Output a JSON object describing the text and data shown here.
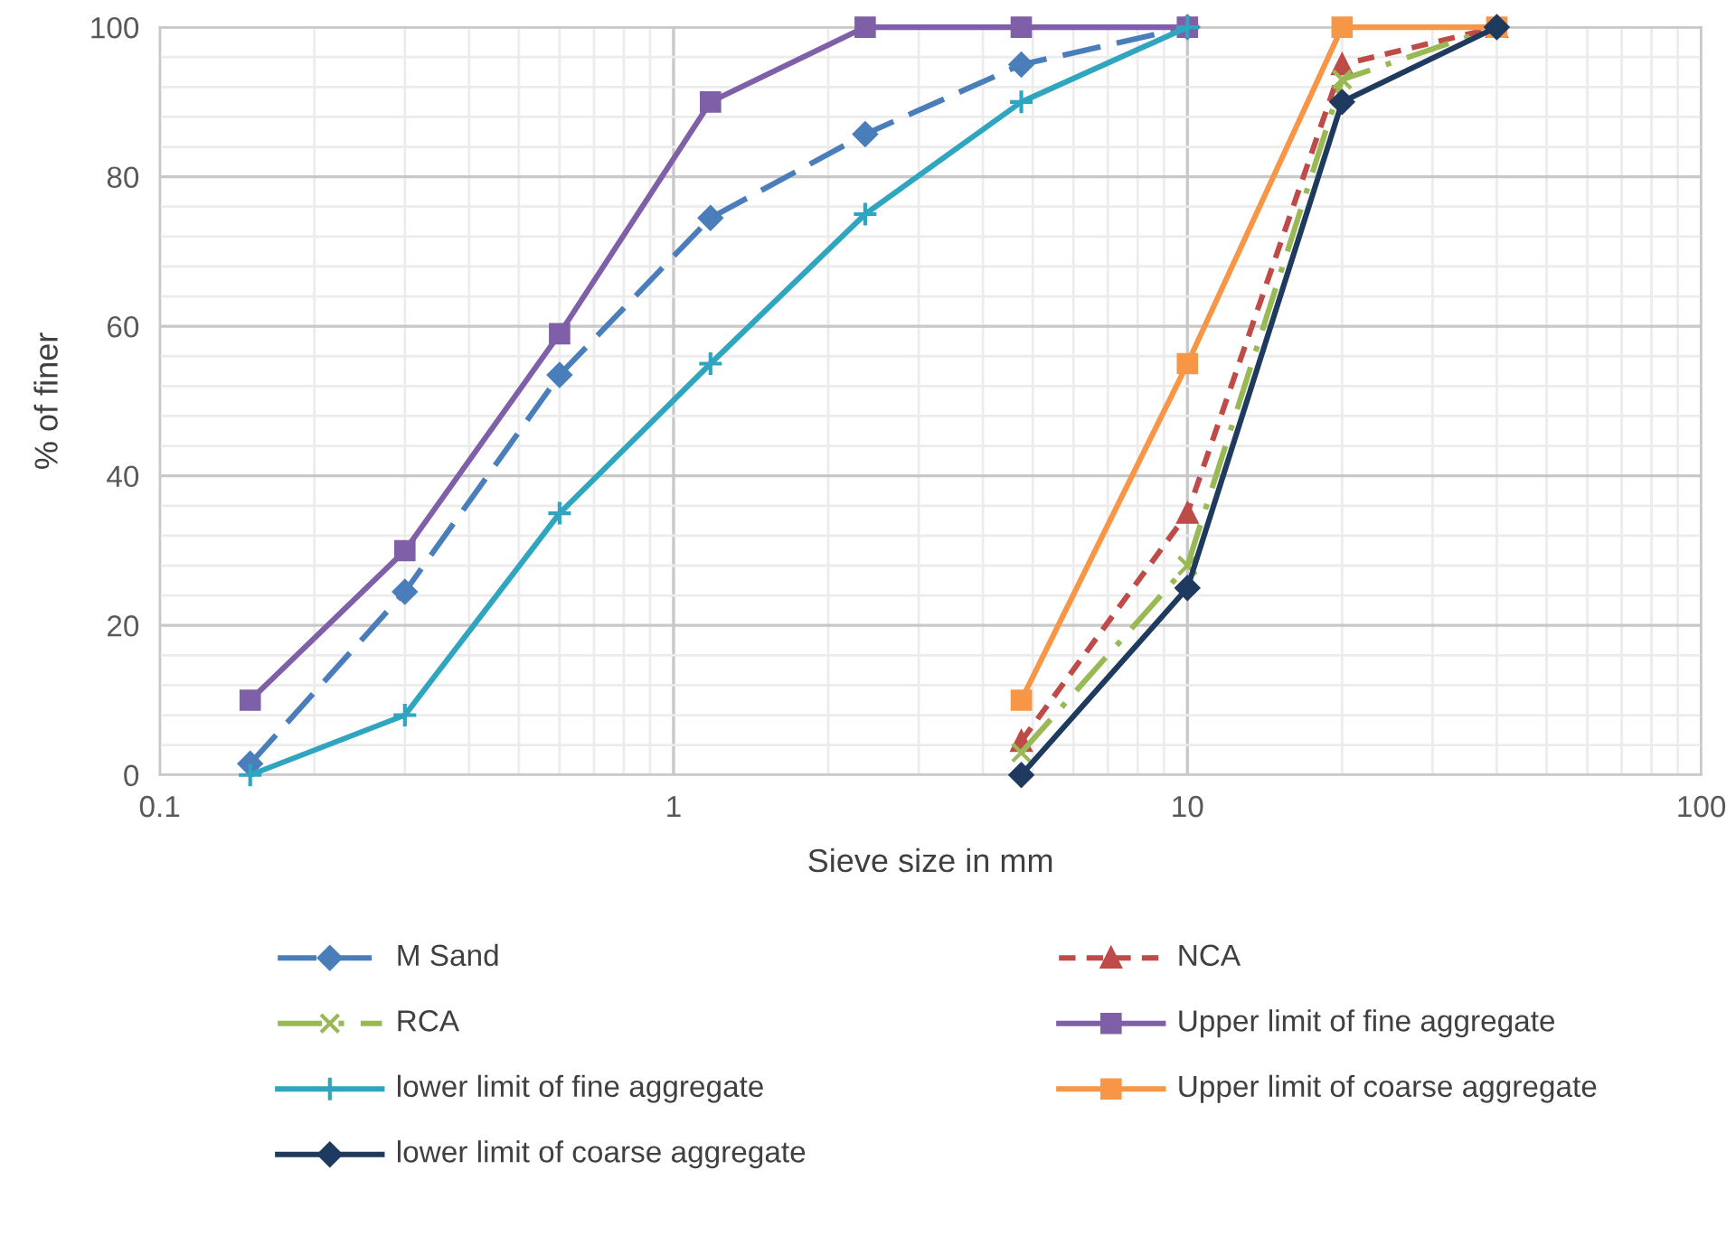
{
  "chart_data": {
    "type": "line",
    "xlabel": "Sieve size in mm",
    "ylabel": "% of finer",
    "log": "x",
    "xlim": [
      0.1,
      100
    ],
    "xticks": [
      0.1,
      1,
      10,
      100
    ],
    "ylim": [
      0,
      100
    ],
    "yticks": [
      0,
      20,
      40,
      60,
      80,
      100
    ],
    "grid": true,
    "legend": "bottom",
    "series": [
      {
        "name": "M Sand",
        "color": "#4a7ebb",
        "marker": "diamond",
        "line_style": "dashed",
        "x": [
          0.15,
          0.3,
          0.6,
          1.18,
          2.36,
          4.75,
          10
        ],
        "values": [
          1.5,
          24.5,
          53.5,
          74.5,
          85.7,
          95,
          100
        ]
      },
      {
        "name": "NCA",
        "color": "#be4b48",
        "marker": "triangle",
        "line_style": "dotted",
        "x": [
          4.75,
          10,
          20,
          40
        ],
        "values": [
          4.5,
          35,
          95,
          100
        ]
      },
      {
        "name": "RCA",
        "color": "#98b954",
        "marker": "cross",
        "line_style": "dashdot",
        "x": [
          4.75,
          10,
          20,
          40
        ],
        "values": [
          3,
          28,
          93,
          100
        ]
      },
      {
        "name": "Upper limit of fine aggregate",
        "color": "#7f5fa8",
        "marker": "square",
        "line_style": "solid",
        "x": [
          0.15,
          0.3,
          0.6,
          1.18,
          2.36,
          4.75,
          10
        ],
        "values": [
          10,
          30,
          59,
          90,
          100,
          100,
          100
        ]
      },
      {
        "name": "lower limit of fine aggregate",
        "color": "#2fa5c0",
        "marker": "plus",
        "line_style": "solid",
        "x": [
          0.15,
          0.3,
          0.6,
          1.18,
          2.36,
          4.75,
          10
        ],
        "values": [
          0,
          8,
          35,
          55,
          75,
          90,
          100
        ]
      },
      {
        "name": "Upper limit of coarse aggregate",
        "color": "#f79646",
        "marker": "square",
        "line_style": "solid",
        "x": [
          4.75,
          10,
          20,
          40
        ],
        "values": [
          10,
          55,
          100,
          100
        ]
      },
      {
        "name": "lower limit of coarse aggregate",
        "color": "#1f3a5f",
        "marker": "diamond",
        "line_style": "solid",
        "x": [
          4.75,
          10,
          20,
          40
        ],
        "values": [
          0,
          25,
          90,
          100
        ]
      }
    ]
  }
}
